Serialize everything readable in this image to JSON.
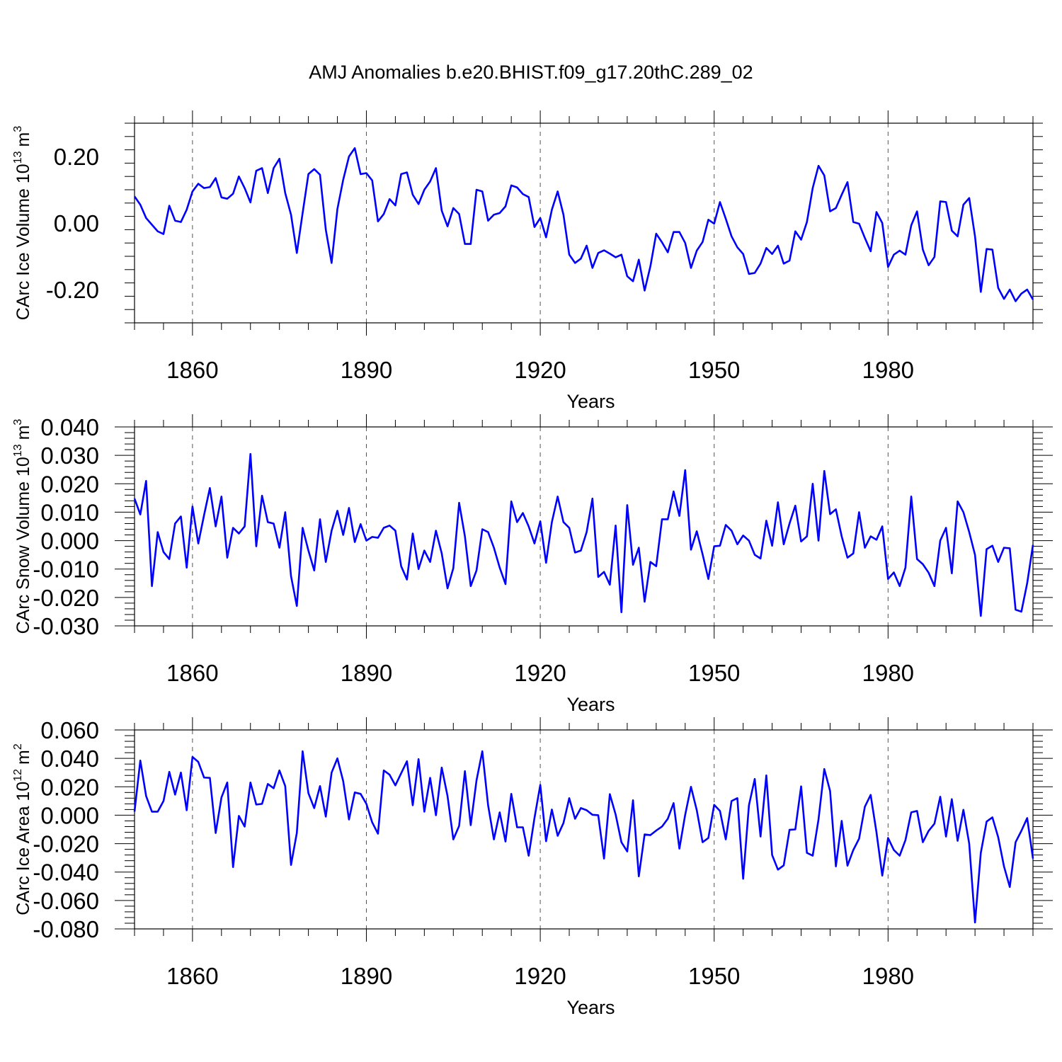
{
  "title": "AMJ Anomalies b.e20.BHIST.f09_g17.20thC.289_02",
  "colors": {
    "series": "#0000ff",
    "axis": "#000000",
    "grid": "#555555"
  },
  "chart_data": [
    {
      "type": "line",
      "name": "ice-volume",
      "ylabel": {
        "main": "CArc Ice Volume 10",
        "exp": "13",
        "unit": "m",
        "unit_exp": "3"
      },
      "xlabel": "Years",
      "xlim": [
        1850,
        2005
      ],
      "ylim": [
        -0.3,
        0.3
      ],
      "xticks": [
        1860,
        1890,
        1920,
        1950,
        1980
      ],
      "xtick_labels": [
        "1860",
        "1890",
        "1920",
        "1950",
        "1980"
      ],
      "yticks": [
        0.2,
        0.0,
        -0.2
      ],
      "ytick_labels": [
        "0.20",
        "0.00",
        "-0.20"
      ],
      "grid": "vertical dashed at major x ticks",
      "x_start": 1850,
      "values": [
        0.08,
        0.055,
        0.015,
        -0.005,
        -0.025,
        -0.033,
        0.052,
        0.007,
        0.003,
        0.04,
        0.095,
        0.118,
        0.105,
        0.108,
        0.135,
        0.077,
        0.073,
        0.088,
        0.14,
        0.105,
        0.062,
        0.157,
        0.165,
        0.09,
        0.165,
        0.193,
        0.09,
        0.025,
        -0.09,
        0.03,
        0.147,
        0.162,
        0.145,
        -0.02,
        -0.12,
        0.042,
        0.13,
        0.2,
        0.225,
        0.147,
        0.15,
        0.128,
        0.005,
        0.027,
        0.072,
        0.053,
        0.147,
        0.152,
        0.085,
        0.057,
        0.1,
        0.125,
        0.165,
        0.037,
        -0.01,
        0.045,
        0.027,
        -0.063,
        -0.063,
        0.1,
        0.095,
        0.007,
        0.025,
        0.03,
        0.05,
        0.113,
        0.107,
        0.087,
        0.078,
        -0.012,
        0.015,
        -0.043,
        0.04,
        0.095,
        0.025,
        -0.095,
        -0.12,
        -0.107,
        -0.068,
        -0.135,
        -0.09,
        -0.082,
        -0.092,
        -0.103,
        -0.095,
        -0.16,
        -0.175,
        -0.11,
        -0.203,
        -0.13,
        -0.032,
        -0.058,
        -0.088,
        -0.027,
        -0.027,
        -0.06,
        -0.135,
        -0.083,
        -0.057,
        0.01,
        -0.002,
        0.063,
        0.013,
        -0.04,
        -0.073,
        -0.093,
        -0.153,
        -0.15,
        -0.122,
        -0.075,
        -0.093,
        -0.068,
        -0.122,
        -0.113,
        -0.025,
        -0.05,
        0.003,
        0.105,
        0.172,
        0.143,
        0.035,
        0.045,
        0.085,
        0.123,
        0.003,
        -0.002,
        -0.045,
        -0.085,
        0.033,
        0.0,
        -0.132,
        -0.095,
        -0.083,
        -0.095,
        -0.007,
        0.035,
        -0.08,
        -0.127,
        -0.102,
        0.065,
        0.063,
        -0.023,
        -0.04,
        0.055,
        0.075,
        -0.04,
        -0.207,
        -0.078,
        -0.08,
        -0.195,
        -0.228,
        -0.2,
        -0.235,
        -0.212,
        -0.2,
        -0.23
      ]
    },
    {
      "type": "line",
      "name": "snow-volume",
      "ylabel": {
        "main": "CArc Snow Volume 10",
        "exp": "13",
        "unit": "m",
        "unit_exp": "3"
      },
      "xlabel": "Years",
      "xlim": [
        1850,
        2005
      ],
      "ylim": [
        -0.03,
        0.04
      ],
      "xticks": [
        1860,
        1890,
        1920,
        1950,
        1980
      ],
      "xtick_labels": [
        "1860",
        "1890",
        "1920",
        "1950",
        "1980"
      ],
      "yticks": [
        0.04,
        0.03,
        0.02,
        0.01,
        0.0,
        -0.01,
        -0.02,
        -0.03
      ],
      "ytick_labels": [
        "0.040",
        "0.030",
        "0.020",
        "0.010",
        "0.000",
        "-0.010",
        "-0.020",
        "-0.030"
      ],
      "grid": "vertical dashed at major x ticks",
      "x_start": 1850,
      "values": [
        0.0148,
        0.0092,
        0.021,
        -0.016,
        0.003,
        -0.004,
        -0.0065,
        0.006,
        0.0085,
        -0.0095,
        0.012,
        -0.001,
        0.009,
        0.0185,
        0.005,
        0.0155,
        -0.006,
        0.0045,
        0.0025,
        0.005,
        0.0305,
        -0.002,
        0.0158,
        0.0065,
        0.006,
        -0.0025,
        0.01,
        -0.0125,
        -0.023,
        0.0045,
        -0.0035,
        -0.0105,
        0.0075,
        -0.0075,
        0.0035,
        0.0105,
        0.002,
        0.0115,
        -0.0005,
        0.0058,
        0.0,
        0.0013,
        0.001,
        0.0045,
        0.0053,
        0.0035,
        -0.009,
        -0.0137,
        0.0025,
        -0.01,
        -0.0035,
        -0.0075,
        0.0035,
        -0.0045,
        -0.0168,
        -0.0097,
        0.0133,
        0.0015,
        -0.016,
        -0.0105,
        0.004,
        0.003,
        -0.0025,
        -0.0095,
        -0.0153,
        0.0138,
        0.0065,
        0.0097,
        0.005,
        -0.001,
        0.0068,
        -0.0078,
        0.0065,
        0.0155,
        0.0065,
        0.0045,
        -0.0042,
        -0.0035,
        0.003,
        0.0148,
        -0.0128,
        -0.011,
        -0.0155,
        0.0053,
        -0.0252,
        0.0125,
        -0.0085,
        -0.0025,
        -0.0215,
        -0.0075,
        -0.009,
        0.0075,
        0.0075,
        0.0173,
        0.0087,
        0.0248,
        -0.0032,
        0.0033,
        -0.0048,
        -0.0135,
        -0.002,
        -0.0018,
        0.0055,
        0.0035,
        -0.0013,
        0.0018,
        0.0,
        -0.005,
        -0.0063,
        0.007,
        -0.0018,
        0.0135,
        -0.0013,
        0.006,
        0.0123,
        -0.0003,
        0.0015,
        0.02,
        0.0,
        0.0245,
        0.0093,
        0.011,
        0.0015,
        -0.006,
        -0.0045,
        0.01,
        -0.0025,
        0.0015,
        0.0003,
        0.005,
        -0.0135,
        -0.0112,
        -0.016,
        -0.0095,
        0.0155,
        -0.0065,
        -0.0083,
        -0.0113,
        -0.016,
        0.0,
        0.0045,
        -0.0115,
        0.0138,
        0.01,
        0.003,
        -0.005,
        -0.0265,
        -0.003,
        -0.0018,
        -0.0075,
        -0.0025,
        -0.0027,
        -0.0243,
        -0.025,
        -0.015,
        -0.0015
      ]
    },
    {
      "type": "line",
      "name": "ice-area",
      "ylabel": {
        "main": "CArc Ice Area 10",
        "exp": "12",
        "unit": "m",
        "unit_exp": "2"
      },
      "xlabel": "Years",
      "xlim": [
        1850,
        2005
      ],
      "ylim": [
        -0.08,
        0.06
      ],
      "xticks": [
        1860,
        1890,
        1920,
        1950,
        1980
      ],
      "xtick_labels": [
        "1860",
        "1890",
        "1920",
        "1950",
        "1980"
      ],
      "yticks": [
        0.06,
        0.04,
        0.02,
        0.0,
        -0.02,
        -0.04,
        -0.06,
        -0.08
      ],
      "ytick_labels": [
        "0.060",
        "0.040",
        "0.020",
        "0.000",
        "-0.020",
        "-0.040",
        "-0.060",
        "-0.080"
      ],
      "grid": "vertical dashed at major x ticks",
      "x_start": 1850,
      "values": [
        0.0025,
        0.0385,
        0.0135,
        0.0025,
        0.0025,
        0.01,
        0.0305,
        0.0145,
        0.03,
        0.0035,
        0.041,
        0.0375,
        0.0265,
        0.0263,
        -0.0125,
        0.0125,
        0.023,
        -0.0365,
        -0.0005,
        -0.008,
        0.023,
        0.0075,
        0.008,
        0.022,
        0.019,
        0.0315,
        0.0205,
        -0.035,
        -0.0125,
        0.045,
        0.0155,
        0.005,
        0.0205,
        -0.001,
        0.03,
        0.04,
        0.024,
        -0.003,
        0.016,
        0.015,
        0.008,
        -0.005,
        -0.013,
        0.0315,
        0.0285,
        0.021,
        0.0295,
        0.038,
        0.007,
        0.0395,
        0.0025,
        0.0263,
        0.0,
        0.0335,
        0.0135,
        -0.017,
        -0.0075,
        0.031,
        -0.007,
        0.0245,
        0.045,
        0.007,
        -0.017,
        0.002,
        -0.0185,
        0.015,
        -0.0085,
        -0.0085,
        -0.0285,
        -0.002,
        0.0213,
        -0.0183,
        0.004,
        -0.0145,
        -0.0055,
        0.012,
        -0.0025,
        0.005,
        0.0035,
        0.0003,
        0.0,
        -0.0305,
        0.0148,
        0.0005,
        -0.019,
        -0.0255,
        0.0105,
        -0.043,
        -0.0135,
        -0.014,
        -0.0108,
        -0.008,
        -0.0025,
        0.0085,
        -0.0235,
        0.0003,
        0.02,
        0.0035,
        -0.019,
        -0.016,
        0.0073,
        0.003,
        -0.017,
        0.01,
        0.012,
        -0.0447,
        0.007,
        0.0255,
        -0.015,
        0.028,
        -0.028,
        -0.0383,
        -0.0353,
        -0.0103,
        -0.01,
        0.0203,
        -0.0265,
        -0.0285,
        -0.003,
        0.0325,
        0.017,
        -0.036,
        -0.004,
        -0.0355,
        -0.0245,
        -0.0165,
        0.006,
        0.0143,
        -0.012,
        -0.0425,
        -0.016,
        -0.0245,
        -0.0285,
        -0.0175,
        0.002,
        0.003,
        -0.019,
        -0.011,
        -0.006,
        0.013,
        -0.015,
        0.0113,
        -0.018,
        0.0038,
        -0.02,
        -0.0755,
        -0.0265,
        -0.0045,
        -0.0015,
        -0.0155,
        -0.036,
        -0.0505,
        -0.019,
        -0.011,
        -0.002,
        -0.0305
      ]
    }
  ]
}
